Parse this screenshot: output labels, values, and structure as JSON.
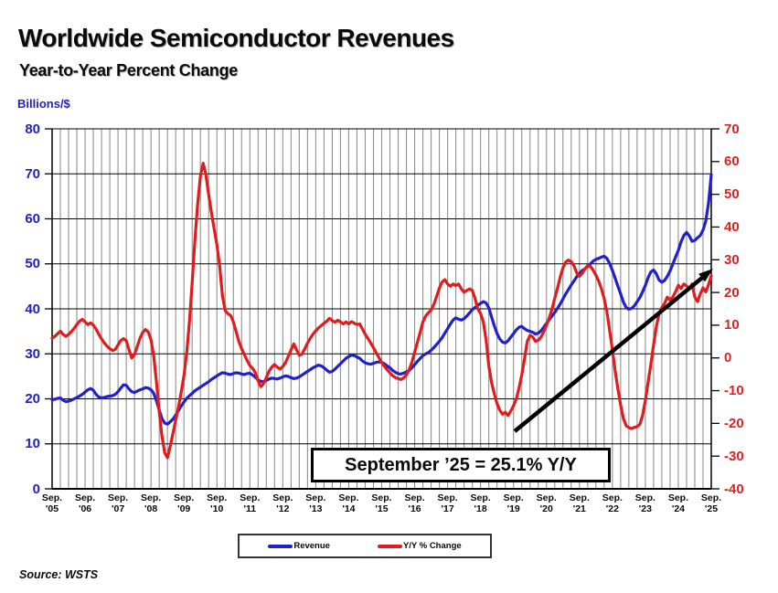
{
  "page": {
    "title": "Worldwide Semiconductor Revenues",
    "subtitle": "Year-to-Year Percent Change",
    "source": "Source: WSTS"
  },
  "chart_data": {
    "type": "line",
    "title": "Worldwide Semiconductor Revenues",
    "subtitle": "Year-to-Year Percent Change",
    "x_start": "Sep 2005",
    "x_end": "Sep 2025",
    "points_per_year": 12,
    "x_gridline_interval_months": 3,
    "grid": "on",
    "legend_position": "bottom",
    "left_axis": {
      "label": "Billions/$",
      "min": 0,
      "max": 80,
      "ticks": [
        80,
        70,
        60,
        50,
        40,
        30,
        20,
        10,
        0
      ],
      "color": "#2222bb"
    },
    "right_axis": {
      "label": "Y/Y % Change",
      "min": -40,
      "max": 70,
      "ticks": [
        70,
        60,
        50,
        40,
        30,
        20,
        10,
        0,
        -10,
        -20,
        -30,
        -40
      ],
      "color": "#dd2222"
    },
    "x_tick_labels": [
      "Sep. '05",
      "Sep. '06",
      "Sep. '07",
      "Sep. '08",
      "Sep. '09",
      "Sep. '10",
      "Sep. '11",
      "Sep. '12",
      "Sep. '13",
      "Sep. '14",
      "Sep. '15",
      "Sep. '16",
      "Sep. '17",
      "Sep. '18",
      "Sep. '19",
      "Sep. '20",
      "Sep. '21",
      "Sep. '22",
      "Sep. '23",
      "Sep. '24",
      "Sep. '25"
    ],
    "annotation": {
      "text": "September ’25 = 25.1% Y/Y"
    },
    "series": [
      {
        "name": "Revenue",
        "axis": "left",
        "color": "#2121cc",
        "values": [
          19.8,
          19.9,
          20.1,
          20.2,
          19.7,
          19.4,
          19.5,
          19.7,
          20.0,
          20.3,
          20.6,
          21.0,
          21.5,
          22.0,
          22.3,
          21.9,
          21.0,
          20.4,
          20.2,
          20.3,
          20.5,
          20.6,
          20.7,
          21.0,
          21.6,
          22.4,
          23.1,
          23.0,
          22.2,
          21.6,
          21.4,
          21.7,
          22.0,
          22.2,
          22.5,
          22.4,
          22.0,
          21.2,
          19.5,
          17.5,
          15.6,
          14.6,
          14.4,
          14.9,
          15.5,
          16.4,
          17.4,
          18.4,
          19.3,
          20.1,
          20.7,
          21.2,
          21.8,
          22.2,
          22.6,
          23.0,
          23.4,
          23.8,
          24.3,
          24.7,
          25.1,
          25.5,
          25.8,
          25.7,
          25.5,
          25.4,
          25.6,
          25.8,
          25.7,
          25.5,
          25.4,
          25.6,
          25.7,
          25.3,
          24.8,
          24.2,
          23.9,
          23.8,
          24.1,
          24.4,
          24.6,
          24.5,
          24.4,
          24.6,
          24.9,
          25.1,
          25.0,
          24.7,
          24.5,
          24.6,
          24.9,
          25.3,
          25.7,
          26.1,
          26.5,
          26.9,
          27.2,
          27.5,
          27.3,
          26.9,
          26.4,
          25.9,
          26.1,
          26.6,
          27.2,
          27.8,
          28.4,
          29.0,
          29.4,
          29.7,
          29.6,
          29.3,
          29.0,
          28.4,
          28.0,
          27.8,
          27.7,
          27.9,
          28.1,
          28.2,
          28.1,
          27.8,
          27.3,
          26.9,
          26.3,
          25.9,
          25.6,
          25.5,
          25.7,
          26.0,
          26.3,
          26.9,
          27.6,
          28.3,
          29.0,
          29.6,
          30.0,
          30.3,
          30.8,
          31.4,
          32.1,
          32.8,
          33.6,
          34.6,
          35.6,
          36.6,
          37.5,
          38.0,
          37.7,
          37.5,
          37.8,
          38.4,
          39.1,
          39.8,
          40.3,
          40.8,
          41.2,
          41.6,
          41.3,
          40.2,
          38.2,
          36.2,
          34.5,
          33.3,
          32.6,
          32.4,
          32.9,
          33.7,
          34.5,
          35.3,
          35.9,
          36.1,
          35.6,
          35.2,
          35.0,
          34.8,
          34.4,
          34.6,
          35.1,
          35.9,
          36.8,
          37.6,
          38.4,
          39.2,
          40.1,
          41.1,
          42.2,
          43.3,
          44.3,
          45.3,
          46.2,
          47.1,
          47.9,
          48.5,
          48.9,
          49.4,
          50.0,
          50.6,
          51.0,
          51.2,
          51.5,
          51.7,
          51.2,
          50.1,
          48.5,
          46.8,
          45.0,
          43.3,
          41.5,
          40.3,
          39.9,
          40.1,
          40.7,
          41.6,
          42.5,
          43.8,
          45.2,
          46.9,
          48.2,
          48.6,
          47.8,
          46.4,
          45.9,
          46.3,
          47.2,
          48.4,
          49.9,
          51.5,
          53.0,
          54.9,
          56.3,
          57.0,
          56.2,
          55.0,
          55.2,
          55.8,
          56.3,
          57.5,
          59.5,
          63.5,
          69.8
        ]
      },
      {
        "name": "Y/Y % Change",
        "axis": "right",
        "color": "#e21c1c",
        "values": [
          6.0,
          6.6,
          7.4,
          8.2,
          7.2,
          6.6,
          7.2,
          8.0,
          9.0,
          10.2,
          11.2,
          11.8,
          11.0,
          10.2,
          10.7,
          10.0,
          8.8,
          7.2,
          5.8,
          4.6,
          3.6,
          2.8,
          2.3,
          2.6,
          4.0,
          5.3,
          5.9,
          5.3,
          2.5,
          0.0,
          1.0,
          3.5,
          6.0,
          7.8,
          8.7,
          8.0,
          5.5,
          0.5,
          -7.5,
          -16.5,
          -24.0,
          -29.0,
          -30.5,
          -27.0,
          -23.0,
          -19.0,
          -15.0,
          -10.5,
          -5.5,
          1.5,
          11.0,
          23.0,
          36.0,
          47.0,
          55.5,
          59.5,
          56.0,
          50.0,
          44.5,
          39.5,
          34.5,
          28.0,
          19.0,
          14.5,
          13.5,
          13.0,
          11.0,
          8.0,
          5.0,
          2.8,
          1.0,
          -0.8,
          -2.3,
          -3.2,
          -4.5,
          -7.0,
          -8.8,
          -7.8,
          -6.0,
          -4.0,
          -2.8,
          -2.0,
          -2.8,
          -3.4,
          -2.6,
          -1.4,
          0.5,
          2.5,
          4.3,
          2.5,
          0.8,
          1.2,
          2.8,
          4.5,
          6.0,
          7.3,
          8.3,
          9.2,
          9.9,
          10.6,
          11.2,
          12.1,
          11.4,
          10.9,
          11.5,
          11.0,
          10.4,
          11.0,
          10.4,
          11.1,
          10.6,
          10.2,
          10.4,
          8.8,
          7.2,
          5.9,
          4.6,
          3.1,
          1.6,
          0.1,
          -1.4,
          -2.6,
          -3.6,
          -4.6,
          -5.4,
          -6.0,
          -6.3,
          -6.6,
          -6.1,
          -5.2,
          -3.6,
          -1.4,
          1.8,
          4.8,
          7.8,
          11.0,
          12.8,
          13.8,
          14.6,
          16.4,
          18.8,
          21.3,
          23.2,
          23.9,
          22.6,
          21.9,
          22.6,
          22.1,
          22.6,
          21.1,
          20.1,
          20.6,
          21.1,
          20.6,
          18.2,
          15.0,
          13.6,
          11.0,
          5.5,
          -2.5,
          -7.5,
          -11.0,
          -14.0,
          -16.0,
          -17.2,
          -16.6,
          -17.6,
          -16.2,
          -14.6,
          -12.6,
          -9.2,
          -5.2,
          -0.3,
          5.0,
          6.9,
          6.4,
          5.1,
          5.4,
          6.3,
          8.0,
          10.0,
          12.2,
          15.0,
          18.2,
          21.3,
          24.7,
          27.6,
          29.3,
          29.9,
          29.4,
          28.2,
          26.0,
          24.9,
          25.8,
          27.2,
          28.2,
          28.0,
          26.8,
          25.3,
          23.5,
          21.2,
          18.2,
          14.2,
          8.5,
          2.5,
          -4.0,
          -9.5,
          -14.4,
          -18.5,
          -20.7,
          -21.3,
          -21.6,
          -21.2,
          -21.0,
          -20.3,
          -17.5,
          -13.0,
          -7.5,
          -2.0,
          4.0,
          9.5,
          13.5,
          15.4,
          16.6,
          18.6,
          17.6,
          18.6,
          20.2,
          22.2,
          21.2,
          22.6,
          22.0,
          21.2,
          22.6,
          18.6,
          17.2,
          19.6,
          21.4,
          20.2,
          22.4,
          25.1
        ]
      }
    ],
    "colors": {
      "grid_vertical": "#909090",
      "grid_horizontal": "#000000",
      "arrow": "#000000"
    }
  }
}
